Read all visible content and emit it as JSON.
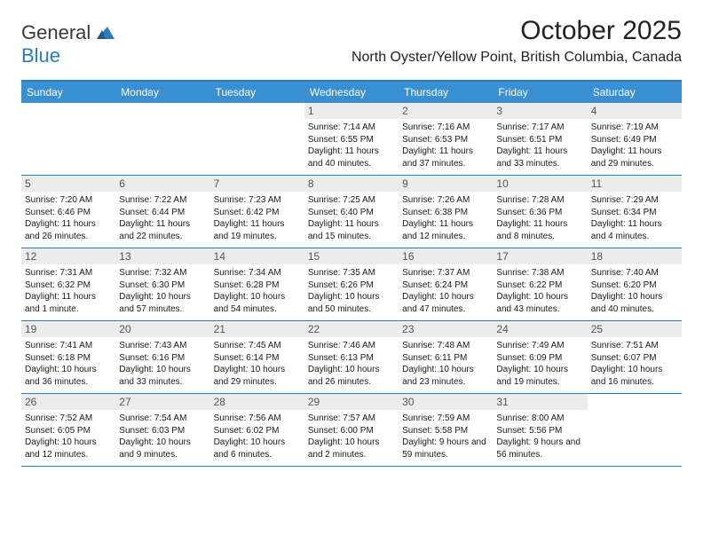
{
  "logo": {
    "line1": "General",
    "line2": "Blue"
  },
  "title": "October 2025",
  "location": "North Oyster/Yellow Point, British Columbia, Canada",
  "colors": {
    "header_bg": "#3a8fd0",
    "accent": "#2b7bbf",
    "daynum_bg": "#ececec",
    "text": "#1a1a1a"
  },
  "font": {
    "body_size": 10,
    "header_size": 12,
    "title_size": 30,
    "location_size": 16
  },
  "day_headers": [
    "Sunday",
    "Monday",
    "Tuesday",
    "Wednesday",
    "Thursday",
    "Friday",
    "Saturday"
  ],
  "weeks": [
    [
      {
        "empty": true
      },
      {
        "empty": true
      },
      {
        "empty": true
      },
      {
        "n": "1",
        "sunrise": "Sunrise: 7:14 AM",
        "sunset": "Sunset: 6:55 PM",
        "day": "Daylight: 11 hours and 40 minutes."
      },
      {
        "n": "2",
        "sunrise": "Sunrise: 7:16 AM",
        "sunset": "Sunset: 6:53 PM",
        "day": "Daylight: 11 hours and 37 minutes."
      },
      {
        "n": "3",
        "sunrise": "Sunrise: 7:17 AM",
        "sunset": "Sunset: 6:51 PM",
        "day": "Daylight: 11 hours and 33 minutes."
      },
      {
        "n": "4",
        "sunrise": "Sunrise: 7:19 AM",
        "sunset": "Sunset: 6:49 PM",
        "day": "Daylight: 11 hours and 29 minutes."
      }
    ],
    [
      {
        "n": "5",
        "sunrise": "Sunrise: 7:20 AM",
        "sunset": "Sunset: 6:46 PM",
        "day": "Daylight: 11 hours and 26 minutes."
      },
      {
        "n": "6",
        "sunrise": "Sunrise: 7:22 AM",
        "sunset": "Sunset: 6:44 PM",
        "day": "Daylight: 11 hours and 22 minutes."
      },
      {
        "n": "7",
        "sunrise": "Sunrise: 7:23 AM",
        "sunset": "Sunset: 6:42 PM",
        "day": "Daylight: 11 hours and 19 minutes."
      },
      {
        "n": "8",
        "sunrise": "Sunrise: 7:25 AM",
        "sunset": "Sunset: 6:40 PM",
        "day": "Daylight: 11 hours and 15 minutes."
      },
      {
        "n": "9",
        "sunrise": "Sunrise: 7:26 AM",
        "sunset": "Sunset: 6:38 PM",
        "day": "Daylight: 11 hours and 12 minutes."
      },
      {
        "n": "10",
        "sunrise": "Sunrise: 7:28 AM",
        "sunset": "Sunset: 6:36 PM",
        "day": "Daylight: 11 hours and 8 minutes."
      },
      {
        "n": "11",
        "sunrise": "Sunrise: 7:29 AM",
        "sunset": "Sunset: 6:34 PM",
        "day": "Daylight: 11 hours and 4 minutes."
      }
    ],
    [
      {
        "n": "12",
        "sunrise": "Sunrise: 7:31 AM",
        "sunset": "Sunset: 6:32 PM",
        "day": "Daylight: 11 hours and 1 minute."
      },
      {
        "n": "13",
        "sunrise": "Sunrise: 7:32 AM",
        "sunset": "Sunset: 6:30 PM",
        "day": "Daylight: 10 hours and 57 minutes."
      },
      {
        "n": "14",
        "sunrise": "Sunrise: 7:34 AM",
        "sunset": "Sunset: 6:28 PM",
        "day": "Daylight: 10 hours and 54 minutes."
      },
      {
        "n": "15",
        "sunrise": "Sunrise: 7:35 AM",
        "sunset": "Sunset: 6:26 PM",
        "day": "Daylight: 10 hours and 50 minutes."
      },
      {
        "n": "16",
        "sunrise": "Sunrise: 7:37 AM",
        "sunset": "Sunset: 6:24 PM",
        "day": "Daylight: 10 hours and 47 minutes."
      },
      {
        "n": "17",
        "sunrise": "Sunrise: 7:38 AM",
        "sunset": "Sunset: 6:22 PM",
        "day": "Daylight: 10 hours and 43 minutes."
      },
      {
        "n": "18",
        "sunrise": "Sunrise: 7:40 AM",
        "sunset": "Sunset: 6:20 PM",
        "day": "Daylight: 10 hours and 40 minutes."
      }
    ],
    [
      {
        "n": "19",
        "sunrise": "Sunrise: 7:41 AM",
        "sunset": "Sunset: 6:18 PM",
        "day": "Daylight: 10 hours and 36 minutes."
      },
      {
        "n": "20",
        "sunrise": "Sunrise: 7:43 AM",
        "sunset": "Sunset: 6:16 PM",
        "day": "Daylight: 10 hours and 33 minutes."
      },
      {
        "n": "21",
        "sunrise": "Sunrise: 7:45 AM",
        "sunset": "Sunset: 6:14 PM",
        "day": "Daylight: 10 hours and 29 minutes."
      },
      {
        "n": "22",
        "sunrise": "Sunrise: 7:46 AM",
        "sunset": "Sunset: 6:13 PM",
        "day": "Daylight: 10 hours and 26 minutes."
      },
      {
        "n": "23",
        "sunrise": "Sunrise: 7:48 AM",
        "sunset": "Sunset: 6:11 PM",
        "day": "Daylight: 10 hours and 23 minutes."
      },
      {
        "n": "24",
        "sunrise": "Sunrise: 7:49 AM",
        "sunset": "Sunset: 6:09 PM",
        "day": "Daylight: 10 hours and 19 minutes."
      },
      {
        "n": "25",
        "sunrise": "Sunrise: 7:51 AM",
        "sunset": "Sunset: 6:07 PM",
        "day": "Daylight: 10 hours and 16 minutes."
      }
    ],
    [
      {
        "n": "26",
        "sunrise": "Sunrise: 7:52 AM",
        "sunset": "Sunset: 6:05 PM",
        "day": "Daylight: 10 hours and 12 minutes."
      },
      {
        "n": "27",
        "sunrise": "Sunrise: 7:54 AM",
        "sunset": "Sunset: 6:03 PM",
        "day": "Daylight: 10 hours and 9 minutes."
      },
      {
        "n": "28",
        "sunrise": "Sunrise: 7:56 AM",
        "sunset": "Sunset: 6:02 PM",
        "day": "Daylight: 10 hours and 6 minutes."
      },
      {
        "n": "29",
        "sunrise": "Sunrise: 7:57 AM",
        "sunset": "Sunset: 6:00 PM",
        "day": "Daylight: 10 hours and 2 minutes."
      },
      {
        "n": "30",
        "sunrise": "Sunrise: 7:59 AM",
        "sunset": "Sunset: 5:58 PM",
        "day": "Daylight: 9 hours and 59 minutes."
      },
      {
        "n": "31",
        "sunrise": "Sunrise: 8:00 AM",
        "sunset": "Sunset: 5:56 PM",
        "day": "Daylight: 9 hours and 56 minutes."
      },
      {
        "empty": true
      }
    ]
  ]
}
